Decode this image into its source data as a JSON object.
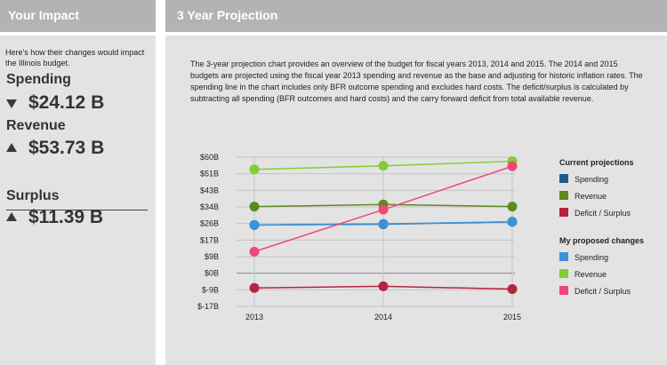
{
  "left": {
    "header_title": "Your Impact",
    "intro": "Here's how their changes would impact the Illinois budget.",
    "metrics": [
      {
        "label": "Spending",
        "direction": "down",
        "value": "$24.12 B"
      },
      {
        "label": "Revenue",
        "direction": "up",
        "value": "$53.73 B"
      },
      {
        "label": "Surplus",
        "direction": "up",
        "value": "$11.39 B"
      }
    ]
  },
  "right": {
    "header_title": "3 Year Projection",
    "description": "The 3-year projection chart provides an overview of the budget for fiscal years 2013, 2014 and 2015. The 2014 and 2015 budgets are projected using the fiscal year 2013 spending and revenue as the base and adjusting for historic inflation rates. The spending line in the chart includes only BFR outcome spending and excludes hard costs. The deficit/surplus is calculated by subtracting all spending (BFR outcomes and hard costs) and the carry forward deficit from total available revenue."
  },
  "chart_data": {
    "type": "line",
    "categories": [
      "2013",
      "2014",
      "2015"
    ],
    "y_ticks": [
      {
        "value": 60,
        "label": "$60B"
      },
      {
        "value": 51,
        "label": "$51B"
      },
      {
        "value": 43,
        "label": "$43B"
      },
      {
        "value": 34,
        "label": "$34B"
      },
      {
        "value": 26,
        "label": "$26B"
      },
      {
        "value": 17,
        "label": "$17B"
      },
      {
        "value": 9,
        "label": "$9B"
      },
      {
        "value": 0,
        "label": "$0B"
      },
      {
        "value": -9,
        "label": "$-9B"
      },
      {
        "value": -17,
        "label": "$-17B"
      }
    ],
    "ylim": [
      -17,
      60
    ],
    "series": [
      {
        "name": "Spending",
        "group": "current",
        "color": "#1f5a8c",
        "values": [
          25.2,
          25.6,
          26.8
        ]
      },
      {
        "name": "Revenue",
        "group": "current",
        "color": "#5e8a1d",
        "values": [
          34.2,
          35.3,
          34.2
        ]
      },
      {
        "name": "Deficit / Surplus",
        "group": "current",
        "color": "#b5243f",
        "values": [
          -8.0,
          -7.1,
          -8.6
        ]
      },
      {
        "name": "Spending",
        "group": "proposed",
        "color": "#3a93d6",
        "values": [
          25.2,
          25.8,
          26.8
        ]
      },
      {
        "name": "Revenue",
        "group": "proposed",
        "color": "#84cd34",
        "values": [
          53.4,
          55.3,
          57.8
        ]
      },
      {
        "name": "Deficit / Surplus",
        "group": "proposed",
        "color": "#f0467b",
        "values": [
          11.4,
          32.7,
          55.1
        ]
      }
    ],
    "legend": {
      "position": "right",
      "groups": [
        {
          "key": "current",
          "title": "Current projections"
        },
        {
          "key": "proposed",
          "title": "My proposed changes"
        }
      ]
    }
  }
}
